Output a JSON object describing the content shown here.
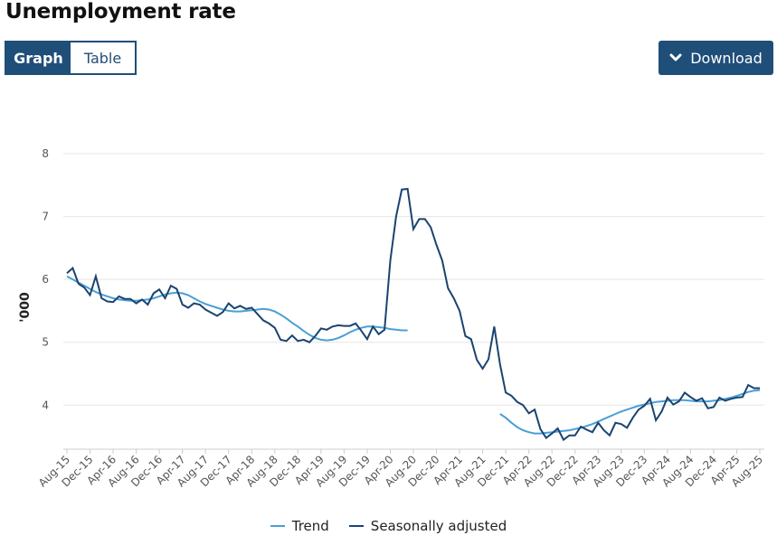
{
  "title": "Unemployment rate",
  "toggle": {
    "graph_label": "Graph",
    "table_label": "Table",
    "active": "graph"
  },
  "download": {
    "label": "Download",
    "icon": "chevron-down-icon"
  },
  "colors": {
    "button_bg": "#1f4e79",
    "trend": "#4a9fd6",
    "seasonally_adjusted": "#1a4470",
    "grid": "#e5e5e5"
  },
  "chart_data": {
    "type": "line",
    "ylabel": "'000",
    "ylim": [
      3.3,
      8.0
    ],
    "yticks": [
      4,
      5,
      6,
      7,
      8
    ],
    "grid": "horizontal",
    "legend_position": "bottom-center",
    "xtick_labels": [
      "Aug-15",
      "Dec-15",
      "Apr-16",
      "Aug-16",
      "Dec-16",
      "Apr-17",
      "Aug-17",
      "Dec-17",
      "Apr-18",
      "Aug-18",
      "Dec-18",
      "Apr-19",
      "Aug-19",
      "Dec-19",
      "Apr-20",
      "Aug-20",
      "Dec-20",
      "Apr-21",
      "Aug-21",
      "Dec-21",
      "Apr-22",
      "Aug-22",
      "Dec-22",
      "Apr-23",
      "Aug-23",
      "Dec-23",
      "Apr-24",
      "Aug-24",
      "Dec-24",
      "Apr-25",
      "Aug-25"
    ],
    "series": [
      {
        "name": "Trend",
        "values": [
          6.05,
          6.0,
          5.95,
          5.9,
          5.85,
          5.8,
          5.76,
          5.73,
          5.7,
          5.68,
          5.67,
          5.66,
          5.66,
          5.67,
          5.68,
          5.7,
          5.73,
          5.76,
          5.78,
          5.79,
          5.78,
          5.75,
          5.7,
          5.65,
          5.61,
          5.58,
          5.55,
          5.52,
          5.5,
          5.49,
          5.49,
          5.5,
          5.51,
          5.52,
          5.53,
          5.52,
          5.49,
          5.44,
          5.38,
          5.31,
          5.25,
          5.18,
          5.12,
          5.07,
          5.04,
          5.03,
          5.04,
          5.07,
          5.11,
          5.16,
          5.2,
          5.23,
          5.25,
          5.25,
          5.24,
          5.23,
          5.21,
          5.2,
          5.19,
          5.19
        ]
      },
      {
        "name": "Seasonally adjusted",
        "values": [
          6.1,
          6.18,
          5.93,
          5.87,
          5.75,
          6.05,
          5.7,
          5.65,
          5.64,
          5.73,
          5.69,
          5.69,
          5.62,
          5.68,
          5.6,
          5.78,
          5.84,
          5.7,
          5.9,
          5.85,
          5.6,
          5.55,
          5.62,
          5.6,
          5.52,
          5.47,
          5.42,
          5.48,
          5.62,
          5.54,
          5.58,
          5.53,
          5.55,
          5.45,
          5.35,
          5.3,
          5.23,
          5.04,
          5.02,
          5.11,
          5.02,
          5.04,
          5.0,
          5.1,
          5.22,
          5.2,
          5.25,
          5.27,
          5.26,
          5.26,
          5.3,
          5.18,
          5.05,
          5.25,
          5.13,
          5.2,
          6.3,
          7.0,
          7.43,
          7.44,
          6.8,
          6.96,
          6.96,
          6.83,
          6.55,
          6.3,
          5.86,
          5.7,
          5.5,
          5.1,
          5.05,
          4.72,
          4.58,
          4.73,
          5.25,
          4.65,
          4.2,
          4.15,
          4.05,
          4.0,
          3.87,
          3.93,
          3.62,
          3.48,
          3.55,
          3.63,
          3.45,
          3.52,
          3.52,
          3.66,
          3.61,
          3.57,
          3.72,
          3.6,
          3.52,
          3.72,
          3.7,
          3.64,
          3.8,
          3.93,
          3.99,
          4.1,
          3.76,
          3.9,
          4.12,
          4.01,
          4.06,
          4.2,
          4.13,
          4.07,
          4.11,
          3.95,
          3.97,
          4.12,
          4.07,
          4.1,
          4.12,
          4.13,
          4.32,
          4.27,
          4.27
        ]
      }
    ]
  }
}
